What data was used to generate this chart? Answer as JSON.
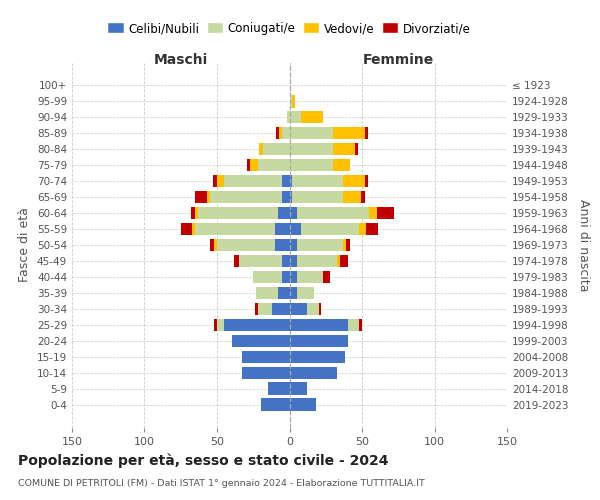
{
  "age_groups": [
    "0-4",
    "5-9",
    "10-14",
    "15-19",
    "20-24",
    "25-29",
    "30-34",
    "35-39",
    "40-44",
    "45-49",
    "50-54",
    "55-59",
    "60-64",
    "65-69",
    "70-74",
    "75-79",
    "80-84",
    "85-89",
    "90-94",
    "95-99",
    "100+"
  ],
  "birth_years": [
    "2019-2023",
    "2014-2018",
    "2009-2013",
    "2004-2008",
    "1999-2003",
    "1994-1998",
    "1989-1993",
    "1984-1988",
    "1979-1983",
    "1974-1978",
    "1969-1973",
    "1964-1968",
    "1959-1963",
    "1954-1958",
    "1949-1953",
    "1944-1948",
    "1939-1943",
    "1934-1938",
    "1929-1933",
    "1924-1928",
    "≤ 1923"
  ],
  "male": {
    "celibi": [
      20,
      15,
      33,
      33,
      40,
      45,
      12,
      8,
      5,
      5,
      10,
      10,
      8,
      5,
      5,
      0,
      0,
      0,
      0,
      0,
      0
    ],
    "coniugati": [
      0,
      0,
      0,
      0,
      0,
      5,
      10,
      15,
      20,
      30,
      40,
      55,
      55,
      50,
      40,
      22,
      18,
      5,
      2,
      0,
      0
    ],
    "vedovi": [
      0,
      0,
      0,
      0,
      0,
      0,
      0,
      0,
      0,
      0,
      2,
      2,
      2,
      2,
      5,
      5,
      3,
      2,
      0,
      0,
      0
    ],
    "divorziati": [
      0,
      0,
      0,
      0,
      0,
      2,
      2,
      0,
      0,
      3,
      3,
      8,
      3,
      8,
      3,
      2,
      0,
      2,
      0,
      0,
      0
    ]
  },
  "female": {
    "nubili": [
      18,
      12,
      33,
      38,
      40,
      40,
      12,
      5,
      5,
      5,
      5,
      8,
      5,
      2,
      2,
      0,
      0,
      0,
      0,
      0,
      0
    ],
    "coniugate": [
      0,
      0,
      0,
      0,
      0,
      8,
      8,
      12,
      18,
      28,
      32,
      40,
      50,
      35,
      35,
      30,
      30,
      30,
      8,
      2,
      0
    ],
    "vedove": [
      0,
      0,
      0,
      0,
      0,
      0,
      0,
      0,
      0,
      2,
      2,
      5,
      5,
      12,
      15,
      12,
      15,
      22,
      15,
      2,
      0
    ],
    "divorziate": [
      0,
      0,
      0,
      0,
      0,
      2,
      2,
      0,
      5,
      5,
      3,
      8,
      12,
      3,
      2,
      0,
      2,
      2,
      0,
      0,
      0
    ]
  },
  "colors": {
    "celibi": "#4472c4",
    "coniugati": "#c5d9a0",
    "vedovi": "#ffc000",
    "divorziati": "#c00000"
  },
  "xlim": 150,
  "title": "Popolazione per età, sesso e stato civile - 2024",
  "subtitle": "COMUNE DI PETRITOLI (FM) - Dati ISTAT 1° gennaio 2024 - Elaborazione TUTTITALIA.IT",
  "ylabel_left": "Fasce di età",
  "ylabel_right": "Anni di nascita",
  "xlabel_left": "Maschi",
  "xlabel_right": "Femmine",
  "legend_labels": [
    "Celibi/Nubili",
    "Coniugati/e",
    "Vedovi/e",
    "Divorziati/e"
  ],
  "background_color": "#ffffff",
  "grid_color": "#cccccc"
}
